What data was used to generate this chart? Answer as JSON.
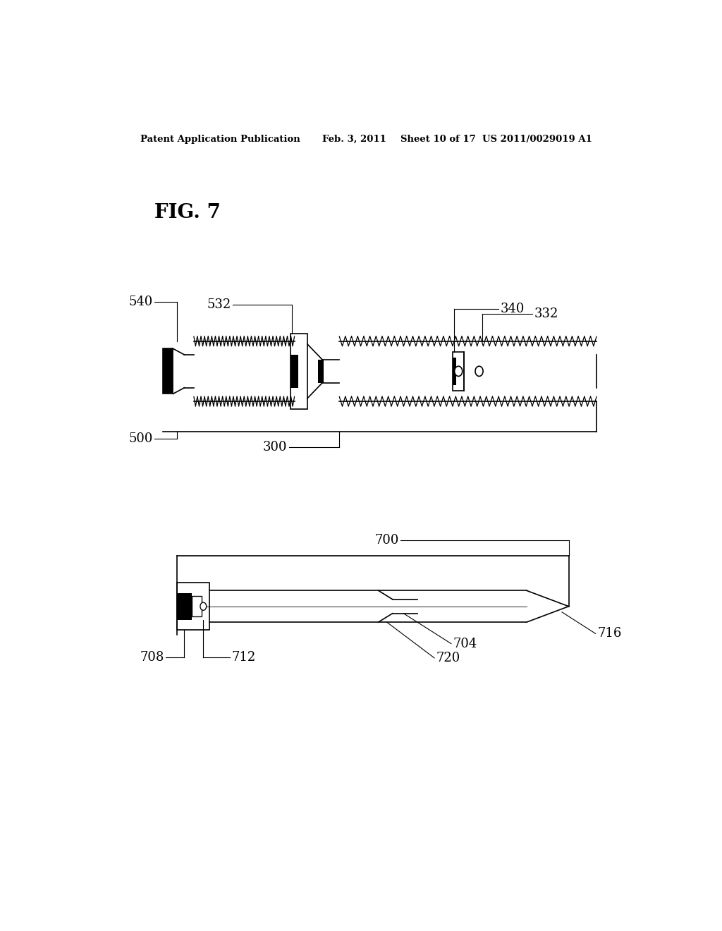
{
  "background_color": "#ffffff",
  "header_text": "Patent Application Publication",
  "header_date": "Feb. 3, 2011",
  "header_sheet": "Sheet 10 of 17",
  "header_patent": "US 2011/0029019 A1",
  "fig_label": "FIG. 7",
  "lw": 1.2
}
